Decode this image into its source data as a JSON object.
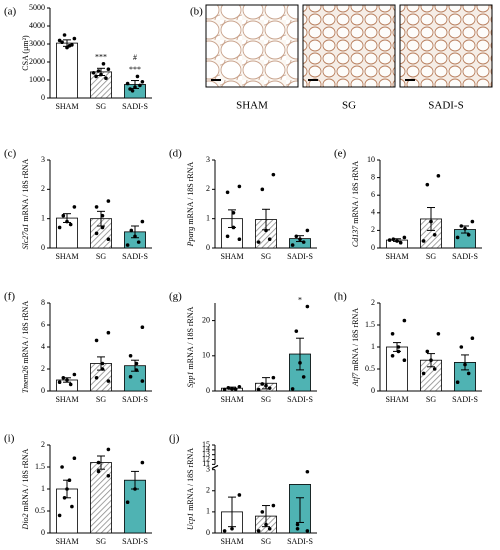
{
  "chart_data": [
    {
      "type": "bar",
      "label": "(a)",
      "ylabel": "CSA (μm²)",
      "categories": [
        "SHAM",
        "SG",
        "SADI-S"
      ],
      "values": [
        3050,
        1450,
        750
      ],
      "errors": [
        180,
        200,
        220
      ],
      "points": [
        [
          3300,
          3100,
          2900,
          2800,
          3500,
          2950,
          3200
        ],
        [
          1600,
          1200,
          1900,
          1300,
          1500,
          1100,
          1400
        ],
        [
          900,
          500,
          1200,
          600,
          400,
          700,
          800
        ]
      ],
      "colors": [
        "#ffffff",
        "#d9d9d9",
        "#4fb3b3"
      ],
      "hatch": [
        false,
        true,
        false
      ],
      "ylim": [
        0,
        5000
      ],
      "yticks": [
        0,
        1000,
        2000,
        3000,
        4000,
        5000
      ],
      "annotations": [
        {
          "text": "***",
          "category": 1
        },
        {
          "text": "***",
          "category": 2
        },
        {
          "text": "#",
          "category": 2
        }
      ]
    },
    {
      "type": "bar",
      "label": "(c)",
      "gene": "Slc27a1",
      "ylabel": "mRNA / 18S rRNA",
      "categories": [
        "SHAM",
        "SG",
        "SADI-S"
      ],
      "values": [
        1.02,
        1.0,
        0.55
      ],
      "errors": [
        0.15,
        0.25,
        0.2
      ],
      "points": [
        [
          1.4,
          1.1,
          0.9,
          0.8,
          0.7
        ],
        [
          1.6,
          1.4,
          1.1,
          0.7,
          0.5,
          0.3
        ],
        [
          0.9,
          0.6,
          0.4,
          0.2,
          0.1
        ]
      ],
      "colors": [
        "#ffffff",
        "#d9d9d9",
        "#4fb3b3"
      ],
      "hatch": [
        false,
        true,
        false
      ],
      "ylim": [
        0,
        3
      ],
      "yticks": [
        0,
        1,
        2,
        3
      ]
    },
    {
      "type": "bar",
      "label": "(d)",
      "gene": "Pparg",
      "ylabel": "mRNA / 18S rRNA",
      "categories": [
        "SHAM",
        "SG",
        "SADI-S"
      ],
      "values": [
        1.0,
        0.97,
        0.32
      ],
      "errors": [
        0.3,
        0.35,
        0.1
      ],
      "points": [
        [
          2.1,
          1.9,
          1.2,
          0.7,
          0.4,
          0.3
        ],
        [
          2.5,
          2.0,
          0.6,
          0.3,
          0.2
        ],
        [
          0.6,
          0.4,
          0.3,
          0.2,
          0.1
        ]
      ],
      "colors": [
        "#ffffff",
        "#d9d9d9",
        "#4fb3b3"
      ],
      "hatch": [
        false,
        true,
        false
      ],
      "ylim": [
        0,
        3
      ],
      "yticks": [
        0,
        1,
        2,
        3
      ]
    },
    {
      "type": "bar",
      "label": "(e)",
      "gene": "Cd137",
      "ylabel": "mRNA / 18S rRNA",
      "categories": [
        "SHAM",
        "SG",
        "SADI-S"
      ],
      "values": [
        0.9,
        3.3,
        2.1
      ],
      "errors": [
        0.15,
        1.3,
        0.4
      ],
      "points": [
        [
          1.2,
          1.0,
          0.8,
          0.6,
          0.9
        ],
        [
          8.2,
          7.2,
          3.0,
          1.5,
          0.8
        ],
        [
          3.0,
          2.5,
          2.2,
          1.5,
          1.2
        ]
      ],
      "colors": [
        "#ffffff",
        "#d9d9d9",
        "#4fb3b3"
      ],
      "hatch": [
        false,
        true,
        false
      ],
      "ylim": [
        0,
        10
      ],
      "yticks": [
        0,
        2,
        4,
        6,
        8,
        10
      ]
    },
    {
      "type": "bar",
      "label": "(f)",
      "gene": "Tmem26",
      "ylabel": "mRNA / 18S rRNA",
      "categories": [
        "SHAM",
        "SG",
        "SADI-S"
      ],
      "values": [
        1.0,
        2.5,
        2.3
      ],
      "errors": [
        0.2,
        0.6,
        0.5
      ],
      "points": [
        [
          1.5,
          1.2,
          1.0,
          0.6,
          0.8
        ],
        [
          5.3,
          4.6,
          2.5,
          2.0,
          1.2,
          0.9
        ],
        [
          5.8,
          3.2,
          2.5,
          1.9,
          1.3,
          0.9
        ]
      ],
      "colors": [
        "#ffffff",
        "#d9d9d9",
        "#4fb3b3"
      ],
      "hatch": [
        false,
        true,
        false
      ],
      "ylim": [
        0,
        8
      ],
      "yticks": [
        0,
        2,
        4,
        6,
        8
      ]
    },
    {
      "type": "bar",
      "label": "(g)",
      "gene": "Spp1",
      "ylabel": "mRNA / 18S rRNA",
      "categories": [
        "SHAM",
        "SG",
        "SADI-S"
      ],
      "values": [
        0.8,
        2.2,
        10.5
      ],
      "errors": [
        0.3,
        1.6,
        4.5
      ],
      "points": [
        [
          1.2,
          0.9,
          0.6,
          0.5,
          0.4
        ],
        [
          3.8,
          2.0,
          1.5,
          0.8,
          0.4
        ],
        [
          24,
          17,
          8,
          4,
          0.6
        ]
      ],
      "colors": [
        "#ffffff",
        "#d9d9d9",
        "#4fb3b3"
      ],
      "hatch": [
        false,
        true,
        false
      ],
      "ylim": [
        0,
        25
      ],
      "yticks": [
        0,
        10,
        20
      ],
      "annotations": [
        {
          "text": "*",
          "category": 2
        }
      ]
    },
    {
      "type": "bar",
      "label": "(h)",
      "gene": "Atf7",
      "ylabel": "mRNA / 18S rRNA",
      "categories": [
        "SHAM",
        "SG",
        "SADI-S"
      ],
      "values": [
        1.0,
        0.7,
        0.65
      ],
      "errors": [
        0.1,
        0.15,
        0.17
      ],
      "points": [
        [
          1.6,
          1.3,
          1.0,
          0.9,
          0.8,
          0.7
        ],
        [
          1.3,
          0.9,
          0.7,
          0.5,
          0.4
        ],
        [
          1.2,
          1.0,
          0.6,
          0.4,
          0.2
        ]
      ],
      "colors": [
        "#ffffff",
        "#d9d9d9",
        "#4fb3b3"
      ],
      "hatch": [
        false,
        true,
        false
      ],
      "ylim": [
        0,
        2
      ],
      "yticks": [
        0,
        0.5,
        1,
        1.5,
        2
      ]
    },
    {
      "type": "bar",
      "label": "(i)",
      "gene": "Dio2",
      "ylabel": "mRNA / 18S rRNA",
      "categories": [
        "SHAM",
        "SG",
        "SADI-S"
      ],
      "values": [
        1.0,
        1.6,
        1.2
      ],
      "errors": [
        0.2,
        0.15,
        0.2
      ],
      "points": [
        [
          1.7,
          1.5,
          1.2,
          1.0,
          0.8,
          0.6,
          0.4
        ],
        [
          1.9,
          1.6,
          1.4,
          1.3
        ],
        [
          1.6,
          1.0,
          0.7
        ]
      ],
      "colors": [
        "#ffffff",
        "#d9d9d9",
        "#4fb3b3"
      ],
      "hatch": [
        false,
        true,
        false
      ],
      "ylim": [
        0,
        2
      ],
      "yticks": [
        0,
        0.5,
        1,
        1.5,
        2
      ]
    },
    {
      "type": "bar",
      "label": "(j)",
      "gene": "Ucp1",
      "ylabel": "mRNA / 18S rRNA",
      "categories": [
        "SHAM",
        "SG",
        "SADI-S"
      ],
      "values": [
        1.0,
        0.8,
        2.3
      ],
      "errors": [
        0.7,
        0.5,
        1.8
      ],
      "points": [
        [
          1.8,
          0.2,
          0.1
        ],
        [
          1.3,
          1.0,
          0.4,
          0.2,
          0.1
        ],
        [
          2.9,
          0.4,
          0.2,
          0.1
        ]
      ],
      "colors": [
        "#ffffff",
        "#d9d9d9",
        "#4fb3b3"
      ],
      "hatch": [
        false,
        true,
        false
      ],
      "ylim": [
        0,
        15
      ],
      "ybreak": [
        3,
        11
      ],
      "yticks": [
        0,
        1,
        2,
        3,
        11,
        12,
        13,
        14,
        15
      ]
    }
  ],
  "image_panel": {
    "label": "(b)",
    "captions": [
      "SHAM",
      "SG",
      "SADI-S"
    ]
  }
}
